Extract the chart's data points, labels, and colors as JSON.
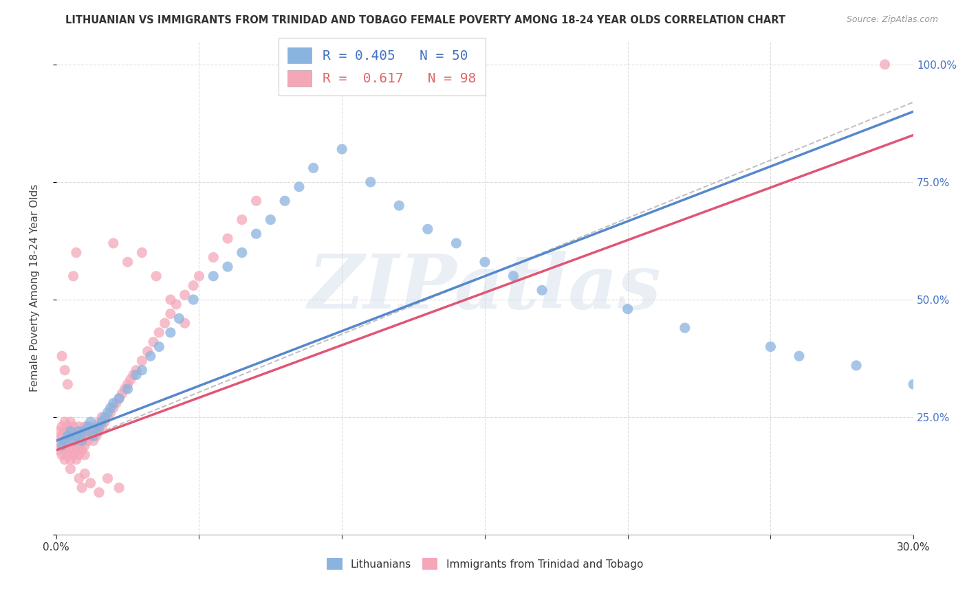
{
  "title": "LITHUANIAN VS IMMIGRANTS FROM TRINIDAD AND TOBAGO FEMALE POVERTY AMONG 18-24 YEAR OLDS CORRELATION CHART",
  "source": "Source: ZipAtlas.com",
  "ylabel": "Female Poverty Among 18-24 Year Olds",
  "xlim": [
    0.0,
    0.3
  ],
  "ylim": [
    0.0,
    1.05
  ],
  "blue_color": "#8ab4e0",
  "pink_color": "#f4a7b9",
  "blue_line_color": "#5588cc",
  "pink_line_color": "#e05575",
  "ref_line_color": "#bbbbbb",
  "legend_R1": "0.405",
  "legend_N1": "50",
  "legend_R2": "0.617",
  "legend_N2": "98",
  "label1": "Lithuanians",
  "label2": "Immigrants from Trinidad and Tobago",
  "background_color": "#ffffff",
  "grid_color": "#dddddd",
  "watermark_text": "ZIPatlas",
  "watermark_color": "#c8d8e8",
  "blue_scatter_x": [
    0.002,
    0.003,
    0.004,
    0.005,
    0.006,
    0.007,
    0.008,
    0.009,
    0.01,
    0.011,
    0.012,
    0.013,
    0.014,
    0.015,
    0.016,
    0.017,
    0.018,
    0.019,
    0.02,
    0.022,
    0.025,
    0.028,
    0.03,
    0.033,
    0.036,
    0.04,
    0.043,
    0.048,
    0.055,
    0.06,
    0.065,
    0.07,
    0.075,
    0.08,
    0.085,
    0.09,
    0.1,
    0.11,
    0.12,
    0.13,
    0.14,
    0.15,
    0.16,
    0.17,
    0.2,
    0.22,
    0.25,
    0.26,
    0.28,
    0.3
  ],
  "blue_scatter_y": [
    0.19,
    0.2,
    0.21,
    0.22,
    0.2,
    0.21,
    0.22,
    0.2,
    0.22,
    0.23,
    0.24,
    0.21,
    0.22,
    0.23,
    0.24,
    0.25,
    0.26,
    0.27,
    0.28,
    0.29,
    0.31,
    0.34,
    0.35,
    0.38,
    0.4,
    0.43,
    0.46,
    0.5,
    0.55,
    0.57,
    0.6,
    0.64,
    0.67,
    0.71,
    0.74,
    0.78,
    0.82,
    0.75,
    0.7,
    0.65,
    0.62,
    0.58,
    0.55,
    0.52,
    0.48,
    0.44,
    0.4,
    0.38,
    0.36,
    0.32
  ],
  "pink_scatter_x": [
    0.001,
    0.001,
    0.001,
    0.002,
    0.002,
    0.002,
    0.002,
    0.003,
    0.003,
    0.003,
    0.003,
    0.003,
    0.004,
    0.004,
    0.004,
    0.004,
    0.005,
    0.005,
    0.005,
    0.005,
    0.005,
    0.006,
    0.006,
    0.006,
    0.006,
    0.007,
    0.007,
    0.007,
    0.007,
    0.008,
    0.008,
    0.008,
    0.008,
    0.009,
    0.009,
    0.009,
    0.01,
    0.01,
    0.01,
    0.01,
    0.011,
    0.011,
    0.012,
    0.012,
    0.013,
    0.013,
    0.014,
    0.014,
    0.015,
    0.015,
    0.016,
    0.016,
    0.017,
    0.018,
    0.019,
    0.02,
    0.021,
    0.022,
    0.023,
    0.024,
    0.025,
    0.026,
    0.027,
    0.028,
    0.03,
    0.032,
    0.034,
    0.036,
    0.038,
    0.04,
    0.042,
    0.045,
    0.048,
    0.05,
    0.055,
    0.06,
    0.065,
    0.07,
    0.02,
    0.025,
    0.03,
    0.035,
    0.04,
    0.045,
    0.002,
    0.003,
    0.004,
    0.005,
    0.006,
    0.007,
    0.008,
    0.009,
    0.01,
    0.012,
    0.015,
    0.018,
    0.022,
    0.29
  ],
  "pink_scatter_y": [
    0.18,
    0.2,
    0.22,
    0.17,
    0.19,
    0.21,
    0.23,
    0.16,
    0.18,
    0.2,
    0.22,
    0.24,
    0.17,
    0.19,
    0.21,
    0.23,
    0.16,
    0.18,
    0.2,
    0.22,
    0.24,
    0.17,
    0.19,
    0.21,
    0.23,
    0.16,
    0.18,
    0.2,
    0.22,
    0.17,
    0.19,
    0.21,
    0.23,
    0.18,
    0.2,
    0.22,
    0.17,
    0.19,
    0.21,
    0.23,
    0.2,
    0.22,
    0.21,
    0.23,
    0.2,
    0.22,
    0.21,
    0.23,
    0.22,
    0.24,
    0.23,
    0.25,
    0.24,
    0.25,
    0.26,
    0.27,
    0.28,
    0.29,
    0.3,
    0.31,
    0.32,
    0.33,
    0.34,
    0.35,
    0.37,
    0.39,
    0.41,
    0.43,
    0.45,
    0.47,
    0.49,
    0.51,
    0.53,
    0.55,
    0.59,
    0.63,
    0.67,
    0.71,
    0.62,
    0.58,
    0.6,
    0.55,
    0.5,
    0.45,
    0.38,
    0.35,
    0.32,
    0.14,
    0.55,
    0.6,
    0.12,
    0.1,
    0.13,
    0.11,
    0.09,
    0.12,
    0.1,
    1.0
  ]
}
